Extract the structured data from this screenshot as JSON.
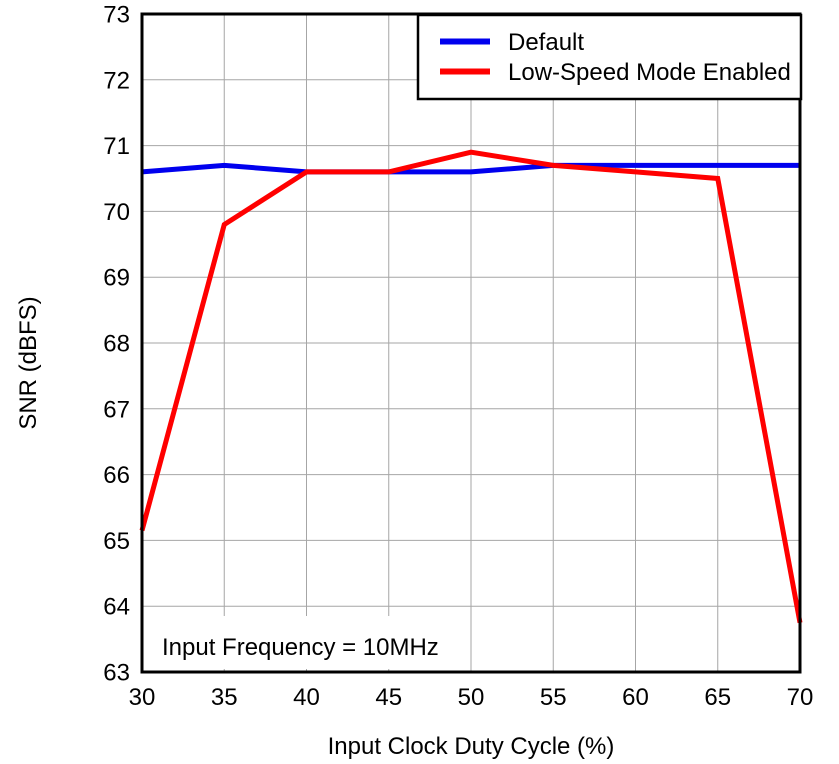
{
  "chart_data": {
    "type": "line",
    "title": "",
    "xlabel": "Input Clock Duty Cycle (%)",
    "ylabel": "SNR (dBFS)",
    "annotation": "Input Frequency = 10MHz",
    "x": [
      30,
      35,
      40,
      45,
      50,
      55,
      60,
      65,
      70
    ],
    "xticks": [
      30,
      35,
      40,
      45,
      50,
      55,
      60,
      65,
      70
    ],
    "yticks": [
      63,
      64,
      65,
      66,
      67,
      68,
      69,
      70,
      71,
      72,
      73
    ],
    "xlim": [
      30,
      70
    ],
    "ylim": [
      63,
      73
    ],
    "grid": true,
    "legend_position": "top-right",
    "series": [
      {
        "name": "Default",
        "color": "#0000EE",
        "values": [
          70.6,
          70.7,
          70.6,
          70.6,
          70.6,
          70.7,
          70.7,
          70.7,
          70.7
        ]
      },
      {
        "name": "Low-Speed Mode Enabled",
        "color": "#FF0000",
        "values": [
          65.15,
          69.8,
          70.6,
          70.6,
          70.9,
          70.7,
          70.6,
          70.5,
          63.75
        ]
      }
    ],
    "colors": {
      "grid": "#A6A6A6",
      "frame": "#000000",
      "text": "#000000",
      "background": "#FFFFFF"
    }
  }
}
